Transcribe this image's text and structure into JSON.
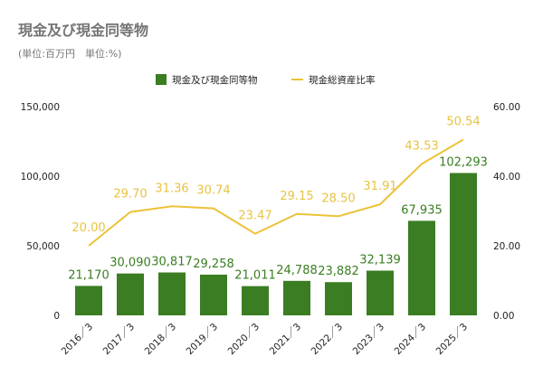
{
  "title": "現金及び現金同等物",
  "subtitle": "(単位:百万円　単位:%)",
  "colors": {
    "bar": "#3a7d22",
    "line": "#ecc238",
    "line_label": "#e8c341",
    "text": "#222222",
    "title": "#757575"
  },
  "chart_data": {
    "type": "bar+line",
    "categories": [
      "2016／3",
      "2017／3",
      "2018／3",
      "2019／3",
      "2020／3",
      "2021／3",
      "2022／3",
      "2023／3",
      "2024／3",
      "2025／3"
    ],
    "series": [
      {
        "name": "現金及び現金同等物",
        "type": "bar",
        "axis": "left",
        "values": [
          21170,
          30090,
          30817,
          29258,
          21011,
          24788,
          23882,
          32139,
          67935,
          102293
        ],
        "labels": [
          "21,170",
          "30,090",
          "30,817",
          "29,258",
          "21,011",
          "24,788",
          "23,882",
          "32,139",
          "67,935",
          "102,293"
        ]
      },
      {
        "name": "現金総資産比率",
        "type": "line",
        "axis": "right",
        "values": [
          20.0,
          29.7,
          31.36,
          30.74,
          23.47,
          29.15,
          28.5,
          31.91,
          43.53,
          50.54
        ],
        "labels": [
          "20.00",
          "29.70",
          "31.36",
          "30.74",
          "23.47",
          "29.15",
          "28.50",
          "31.91",
          "43.53",
          "50.54"
        ]
      }
    ],
    "y_left": {
      "min": 0,
      "max": 150000,
      "ticks": [
        0,
        50000,
        100000,
        150000
      ],
      "tick_labels": [
        "0",
        "50,000",
        "100,000",
        "150,000"
      ]
    },
    "y_right": {
      "min": 0,
      "max": 60,
      "ticks": [
        0,
        20,
        40,
        60
      ],
      "tick_labels": [
        "0.00",
        "20.00",
        "40.00",
        "60.00"
      ]
    },
    "legend_position": "top",
    "grid": false
  }
}
